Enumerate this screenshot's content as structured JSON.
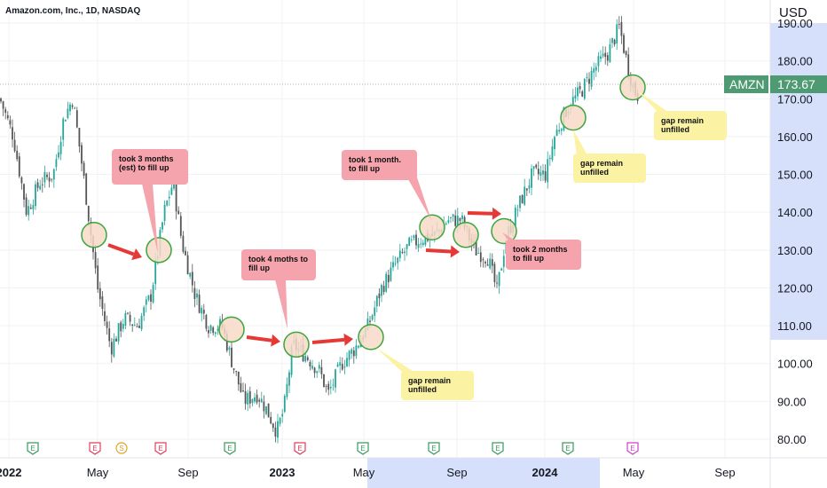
{
  "header": {
    "symbol_title": "Amazon.com, Inc., 1D, NASDAQ",
    "currency": "USD"
  },
  "price_tag": {
    "symbol": "AMZN",
    "price": "173.67",
    "color": "#4e9a73"
  },
  "colors": {
    "up": "#26a69a",
    "down": "#555555",
    "circle_fill": "#f8d9c8",
    "circle_stroke": "#3aa63a",
    "arrow": "#e53935",
    "axis_highlight": "#d6e0fb",
    "note_red": "#f5a3ac",
    "note_yellow": "#fbf3a3"
  },
  "annotations": [
    {
      "text": "took 3 months (est) to fill up",
      "style": "red"
    },
    {
      "text": "took  4 moths to fill up",
      "style": "red"
    },
    {
      "text": "took 1 month. to fill up",
      "style": "red"
    },
    {
      "text": "took 2 months to fill up",
      "style": "red"
    },
    {
      "text": "gap remain unfilled",
      "style": "yellow"
    },
    {
      "text": "gap remain unfilled",
      "style": "yellow"
    },
    {
      "text": "gap remain unfilled",
      "style": "yellow"
    }
  ],
  "event_markers": [
    {
      "label": "E",
      "color": "#3a9a5b"
    },
    {
      "label": "E",
      "color": "#e0405a"
    },
    {
      "label": "S",
      "color": "#e0a020"
    },
    {
      "label": "E",
      "color": "#e0405a"
    },
    {
      "label": "E",
      "color": "#3a9a5b"
    },
    {
      "label": "E",
      "color": "#e0405a"
    },
    {
      "label": "E",
      "color": "#3a9a5b"
    },
    {
      "label": "E",
      "color": "#3a9a5b"
    },
    {
      "label": "E",
      "color": "#3a9a5b"
    },
    {
      "label": "E",
      "color": "#3a9a5b"
    },
    {
      "label": "E",
      "color": "#cc44cc"
    }
  ],
  "chart_data": {
    "type": "candlestick",
    "title": "Amazon.com, Inc., 1D, NASDAQ",
    "ylim": [
      78,
      194
    ],
    "y_ticks": [
      "80.00",
      "90.00",
      "100.00",
      "110.00",
      "120.00",
      "130.00",
      "140.00",
      "150.00",
      "160.00",
      "170.00",
      "180.00",
      "190.00"
    ],
    "x_ticks": [
      "2022",
      "May",
      "Sep",
      "2023",
      "May",
      "Sep",
      "2024",
      "May",
      "Sep"
    ],
    "last_price": 173.67,
    "gap_levels": [
      134,
      130,
      109,
      105,
      107,
      136,
      134,
      135,
      165,
      173
    ]
  }
}
